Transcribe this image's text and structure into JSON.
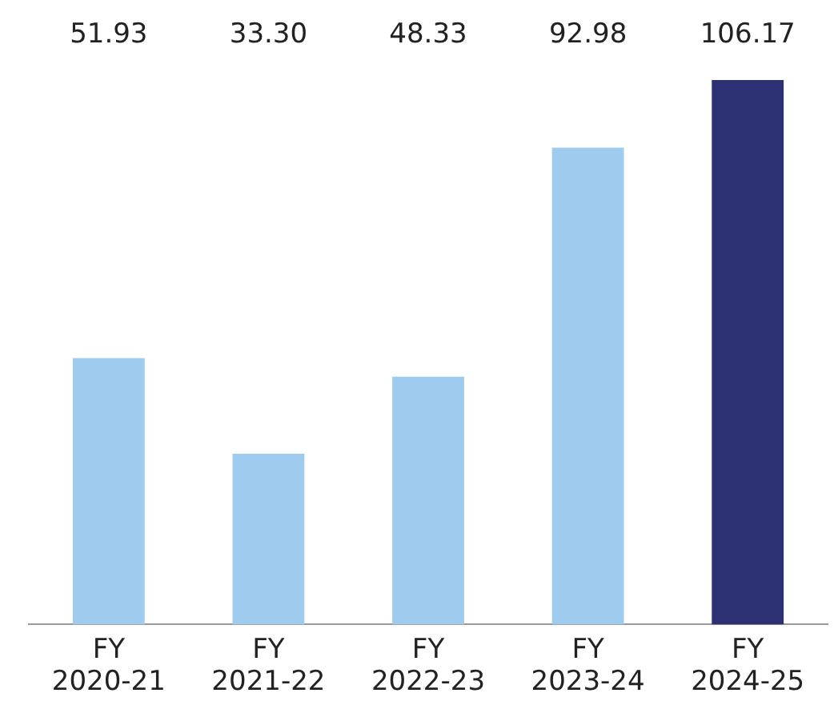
{
  "chart_data": {
    "type": "bar",
    "categories": [
      "FY 2020-21",
      "FY 2021-22",
      "FY 2022-23",
      "FY 2023-24",
      "FY 2024-25"
    ],
    "values": [
      51.93,
      33.3,
      48.33,
      92.98,
      106.17
    ],
    "value_labels": [
      "51.93",
      "33.30",
      "48.33",
      "92.98",
      "106.17"
    ],
    "colors": [
      "#9ecbee",
      "#9ecbee",
      "#9ecbee",
      "#9ecbee",
      "#2b3173"
    ],
    "grid": false,
    "legend": false
  }
}
